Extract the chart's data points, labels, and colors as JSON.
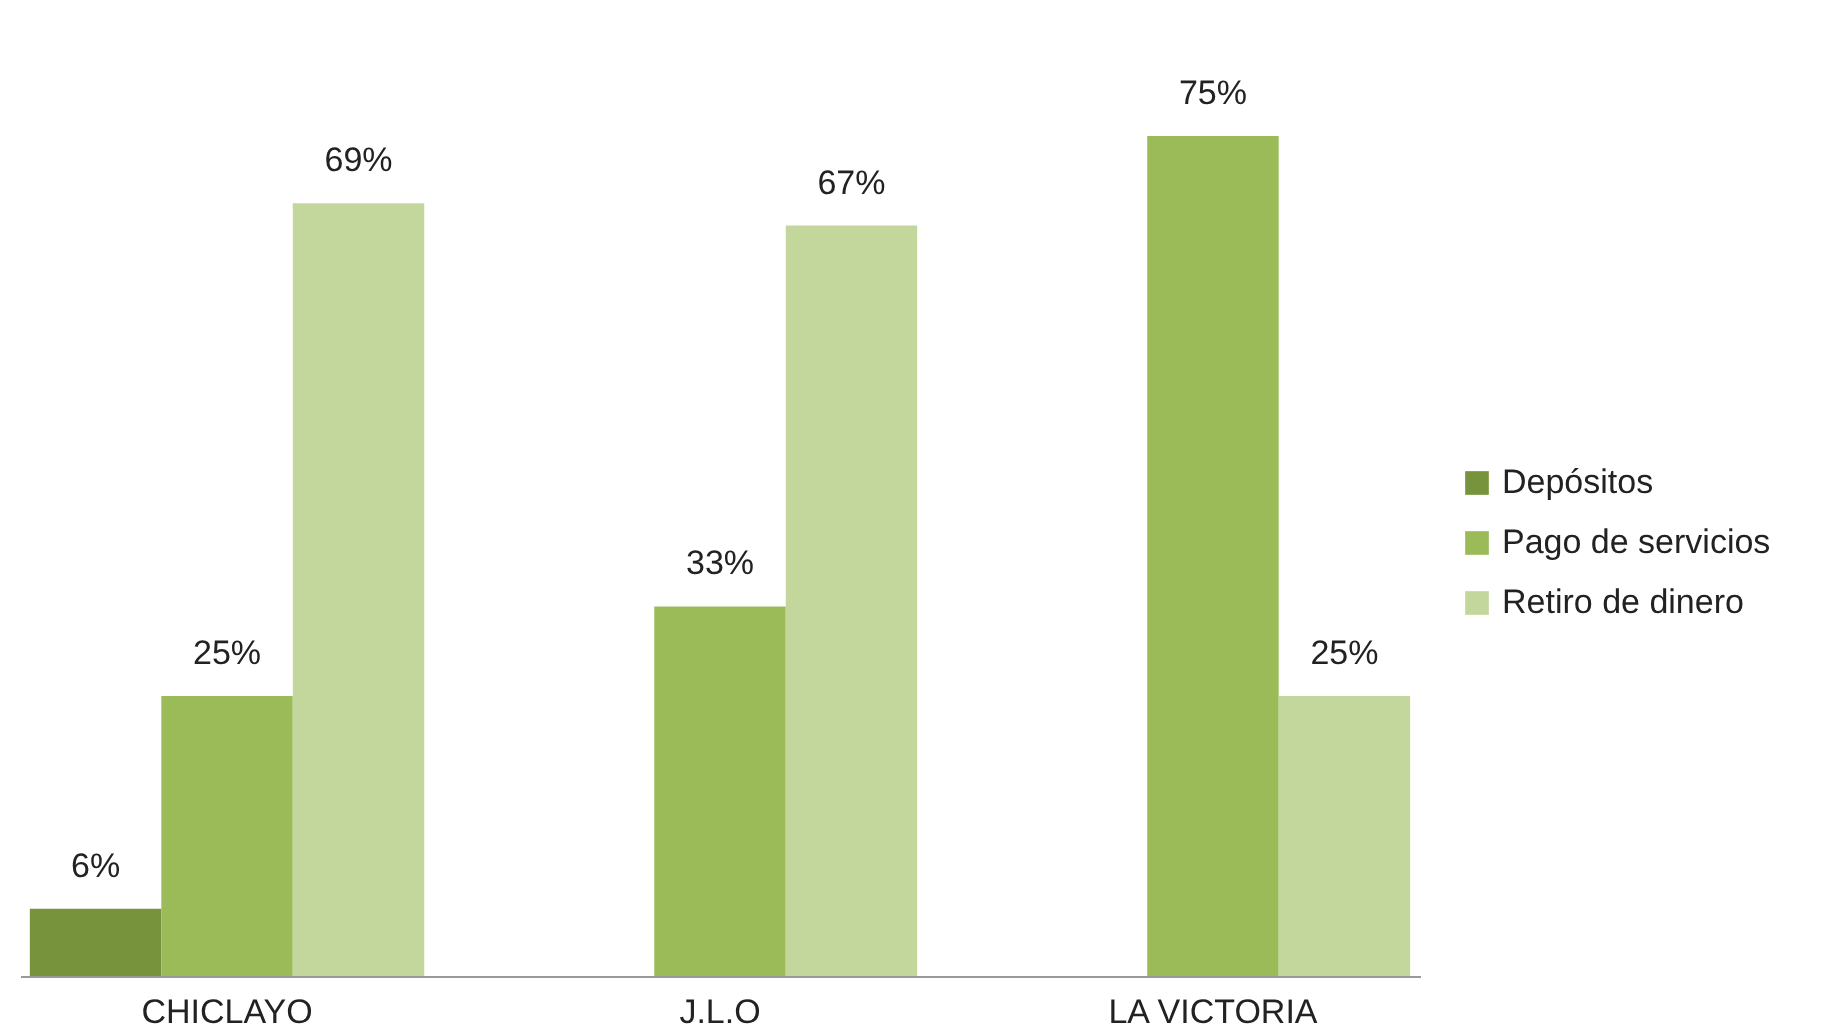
{
  "chart_data": {
    "type": "bar",
    "categories": [
      "CHICLAYO",
      "J.L.O",
      "LA VICTORIA"
    ],
    "series": [
      {
        "name": "Depósitos",
        "color": "#77933c",
        "values": [
          6,
          null,
          null
        ],
        "value_labels": [
          "6%",
          null,
          null
        ]
      },
      {
        "name": "Pago de servicios",
        "color": "#9bbb59",
        "values": [
          25,
          33,
          75
        ],
        "value_labels": [
          "25%",
          "33%",
          "75%"
        ]
      },
      {
        "name": "Retiro de dinero",
        "color": "#c3d69b",
        "values": [
          69,
          67,
          25
        ],
        "value_labels": [
          "69%",
          "67%",
          "25%"
        ]
      }
    ],
    "legend": "right",
    "grid": false
  }
}
